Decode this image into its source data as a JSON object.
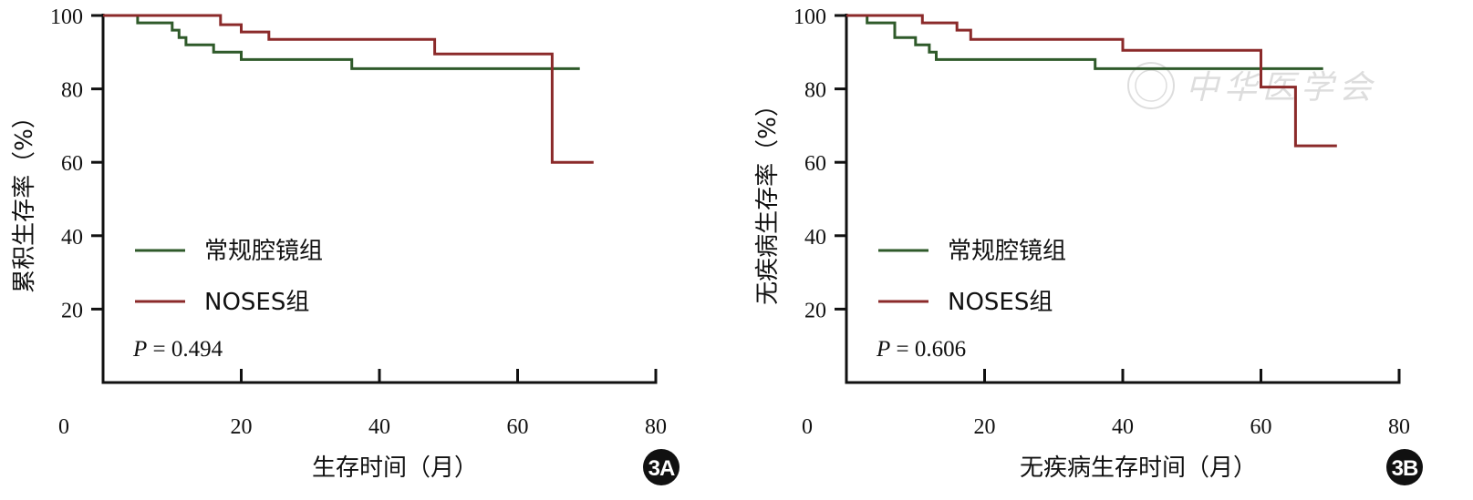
{
  "chart_data": [
    {
      "type": "line",
      "step": true,
      "panel_label": "3A",
      "xlabel": "生存时间（月）",
      "ylabel": "累积生存率（%）",
      "xlim": [
        0,
        80
      ],
      "ylim": [
        0,
        100
      ],
      "x_ticks": [
        "0",
        "20",
        "40",
        "60",
        "80"
      ],
      "y_ticks": [
        "20",
        "40",
        "60",
        "80",
        "100"
      ],
      "legend_position": "middle-left",
      "annotation": {
        "italic": "P",
        "rest": " = 0.494"
      },
      "series": [
        {
          "name": "常规腔镜组",
          "color": "#2f5a2a",
          "points": [
            [
              0,
              100
            ],
            [
              5,
              100
            ],
            [
              5,
              98
            ],
            [
              10,
              98
            ],
            [
              10,
              96
            ],
            [
              11,
              96
            ],
            [
              11,
              94
            ],
            [
              12,
              94
            ],
            [
              12,
              92
            ],
            [
              16,
              92
            ],
            [
              16,
              90
            ],
            [
              20,
              90
            ],
            [
              20,
              88
            ],
            [
              36,
              88
            ],
            [
              36,
              85.5
            ],
            [
              69,
              85.5
            ]
          ]
        },
        {
          "name": "NOSES组",
          "color": "#8b2a2a",
          "points": [
            [
              0,
              100
            ],
            [
              17,
              100
            ],
            [
              17,
              97.5
            ],
            [
              20,
              97.5
            ],
            [
              20,
              95.5
            ],
            [
              24,
              95.5
            ],
            [
              24,
              93.5
            ],
            [
              48,
              93.5
            ],
            [
              48,
              89.5
            ],
            [
              65,
              89.5
            ],
            [
              65,
              60
            ],
            [
              71,
              60
            ]
          ]
        }
      ]
    },
    {
      "type": "line",
      "step": true,
      "panel_label": "3B",
      "xlabel": "无疾病生存时间（月）",
      "ylabel": "无疾病生存率（%）",
      "xlim": [
        0,
        80
      ],
      "ylim": [
        0,
        100
      ],
      "x_ticks": [
        "0",
        "20",
        "40",
        "60",
        "80"
      ],
      "y_ticks": [
        "20",
        "40",
        "60",
        "80",
        "100"
      ],
      "legend_position": "middle-left",
      "annotation": {
        "italic": "P",
        "rest": " = 0.606"
      },
      "watermark": "中华医学会",
      "series": [
        {
          "name": "常规腔镜组",
          "color": "#2f5a2a",
          "points": [
            [
              0,
              100
            ],
            [
              3,
              100
            ],
            [
              3,
              98
            ],
            [
              7,
              98
            ],
            [
              7,
              94
            ],
            [
              10,
              94
            ],
            [
              10,
              92
            ],
            [
              12,
              92
            ],
            [
              12,
              90
            ],
            [
              13,
              90
            ],
            [
              13,
              88
            ],
            [
              36,
              88
            ],
            [
              36,
              85.5
            ],
            [
              69,
              85.5
            ]
          ]
        },
        {
          "name": "NOSES组",
          "color": "#8b2a2a",
          "points": [
            [
              0,
              100
            ],
            [
              11,
              100
            ],
            [
              11,
              98
            ],
            [
              16,
              98
            ],
            [
              16,
              96
            ],
            [
              18,
              96
            ],
            [
              18,
              93.5
            ],
            [
              40,
              93.5
            ],
            [
              40,
              90.5
            ],
            [
              60,
              90.5
            ],
            [
              60,
              80.5
            ],
            [
              65,
              80.5
            ],
            [
              65,
              64.5
            ],
            [
              71,
              64.5
            ]
          ]
        }
      ]
    }
  ]
}
